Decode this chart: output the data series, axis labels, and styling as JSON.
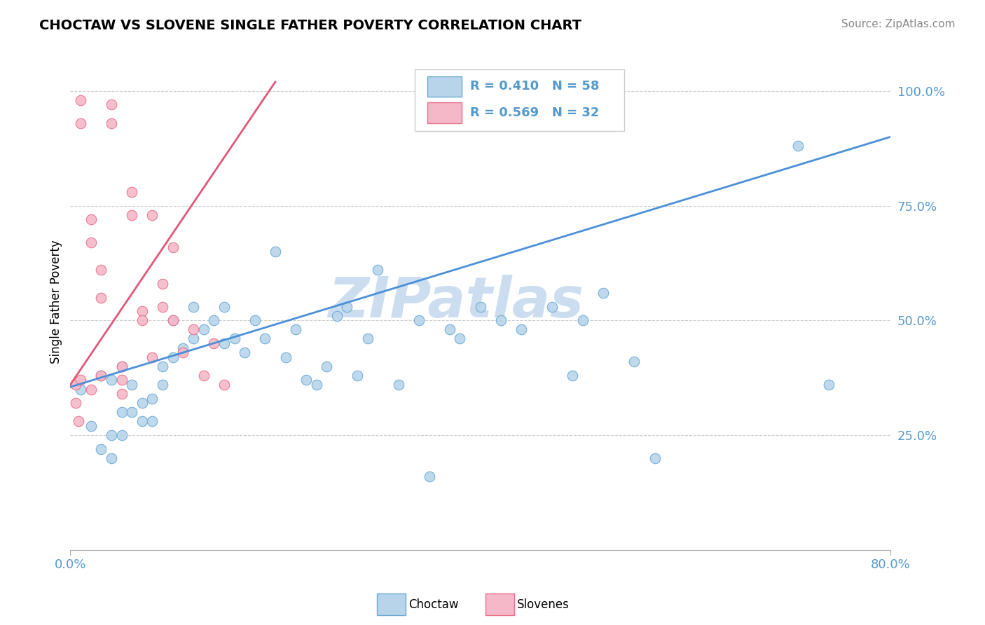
{
  "title": "CHOCTAW VS SLOVENE SINGLE FATHER POVERTY CORRELATION CHART",
  "source_text": "Source: ZipAtlas.com",
  "ylabel": "Single Father Poverty",
  "xlim": [
    0.0,
    0.8
  ],
  "ylim": [
    0.0,
    1.08
  ],
  "xtick_labels": [
    "0.0%",
    "80.0%"
  ],
  "ytick_positions": [
    0.25,
    0.5,
    0.75,
    1.0
  ],
  "ytick_labels": [
    "25.0%",
    "50.0%",
    "75.0%",
    "100.0%"
  ],
  "choctaw_color": "#b8d4ea",
  "slovene_color": "#f5b8c8",
  "choctaw_edge_color": "#6aaad4",
  "slovene_edge_color": "#e8708a",
  "choctaw_line_color": "#4a90d9",
  "slovene_line_color": "#e05878",
  "choctaw_R": 0.41,
  "choctaw_N": 58,
  "slovene_R": 0.569,
  "slovene_N": 32,
  "watermark": "ZIPatlas",
  "watermark_color": "#ccddf0",
  "grid_color": "#cccccc",
  "background_color": "#ffffff",
  "tick_color": "#5599cc",
  "choctaw_x": [
    0.01,
    0.02,
    0.03,
    0.03,
    0.04,
    0.04,
    0.04,
    0.05,
    0.05,
    0.05,
    0.06,
    0.06,
    0.07,
    0.07,
    0.08,
    0.08,
    0.09,
    0.09,
    0.1,
    0.1,
    0.11,
    0.12,
    0.12,
    0.13,
    0.14,
    0.15,
    0.15,
    0.16,
    0.17,
    0.18,
    0.19,
    0.2,
    0.21,
    0.22,
    0.23,
    0.24,
    0.25,
    0.26,
    0.27,
    0.28,
    0.29,
    0.3,
    0.32,
    0.34,
    0.35,
    0.37,
    0.38,
    0.4,
    0.42,
    0.44,
    0.47,
    0.49,
    0.5,
    0.52,
    0.55,
    0.57,
    0.71,
    0.74
  ],
  "choctaw_y": [
    0.35,
    0.27,
    0.22,
    0.38,
    0.2,
    0.25,
    0.37,
    0.3,
    0.25,
    0.4,
    0.3,
    0.36,
    0.28,
    0.32,
    0.33,
    0.28,
    0.4,
    0.36,
    0.42,
    0.5,
    0.44,
    0.53,
    0.46,
    0.48,
    0.5,
    0.45,
    0.53,
    0.46,
    0.43,
    0.5,
    0.46,
    0.65,
    0.42,
    0.48,
    0.37,
    0.36,
    0.4,
    0.51,
    0.53,
    0.38,
    0.46,
    0.61,
    0.36,
    0.5,
    0.16,
    0.48,
    0.46,
    0.53,
    0.5,
    0.48,
    0.53,
    0.38,
    0.5,
    0.56,
    0.41,
    0.2,
    0.88,
    0.36
  ],
  "slovene_x": [
    0.005,
    0.005,
    0.008,
    0.01,
    0.01,
    0.01,
    0.02,
    0.02,
    0.02,
    0.03,
    0.03,
    0.03,
    0.04,
    0.04,
    0.05,
    0.05,
    0.05,
    0.06,
    0.06,
    0.07,
    0.07,
    0.08,
    0.08,
    0.09,
    0.09,
    0.1,
    0.1,
    0.11,
    0.12,
    0.13,
    0.14,
    0.15
  ],
  "slovene_y": [
    0.36,
    0.32,
    0.28,
    0.98,
    0.93,
    0.37,
    0.72,
    0.67,
    0.35,
    0.61,
    0.55,
    0.38,
    0.97,
    0.93,
    0.4,
    0.37,
    0.34,
    0.73,
    0.78,
    0.52,
    0.5,
    0.73,
    0.42,
    0.58,
    0.53,
    0.5,
    0.66,
    0.43,
    0.48,
    0.38,
    0.45,
    0.36
  ],
  "choctaw_line_x": [
    0.0,
    0.8
  ],
  "choctaw_line_y": [
    0.355,
    0.9
  ],
  "slovene_line_x": [
    0.0,
    0.2
  ],
  "slovene_line_y": [
    0.36,
    1.02
  ]
}
